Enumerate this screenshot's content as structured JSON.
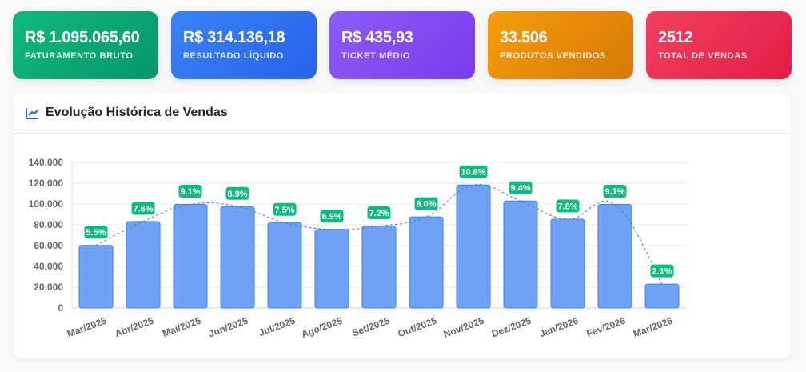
{
  "cards": [
    {
      "value": "R$ 1.095.065,60",
      "label": "FATURAMENTO BRUTO",
      "colors": [
        "#10b981",
        "#059669"
      ]
    },
    {
      "value": "R$ 314.136,18",
      "label": "RESULTADO LÍQUIDO",
      "colors": [
        "#3b82f6",
        "#2563eb"
      ]
    },
    {
      "value": "R$ 435,93",
      "label": "TICKET MÉDIO",
      "colors": [
        "#8b5cf6",
        "#7c3aed"
      ]
    },
    {
      "value": "33.506",
      "label": "PRODUTOS VENDIDOS",
      "colors": [
        "#f59e0b",
        "#d97706"
      ]
    },
    {
      "value": "2512",
      "label": "TOTAL DE VENDAS",
      "colors": [
        "#f43f5e",
        "#e11d48"
      ]
    }
  ],
  "panel": {
    "title": "Evolução Histórica de Vendas",
    "icon": "chart-line-icon"
  },
  "chart_data": {
    "type": "bar",
    "categories": [
      "Mar/2025",
      "Abr/2025",
      "Mai/2025",
      "Jun/2025",
      "Jul/2025",
      "Ago/2025",
      "Set/2025",
      "Out/2025",
      "Nov/2025",
      "Dez/2025",
      "Jan/2026",
      "Fev/2026",
      "Mar/2026"
    ],
    "values": [
      60200,
      83200,
      99600,
      97500,
      82100,
      75600,
      78800,
      87600,
      118300,
      102900,
      85400,
      99600,
      23000
    ],
    "data_labels": [
      "5.5%",
      "7.6%",
      "9.1%",
      "8.9%",
      "7.5%",
      "6.9%",
      "7.2%",
      "8.0%",
      "10.8%",
      "9.4%",
      "7.8%",
      "9.1%",
      "2.1%"
    ],
    "ylim": [
      0,
      140000
    ],
    "yticks": [
      "0",
      "20.000",
      "40.000",
      "60.000",
      "80.000",
      "100.000",
      "120.000",
      "140.000"
    ],
    "grid": true,
    "trend_line": "dashed",
    "colors": {
      "bar": "#6fa1f5",
      "bar_border": "#3b82f6",
      "label_bg": "#10b981",
      "trend": "#64748b"
    }
  }
}
